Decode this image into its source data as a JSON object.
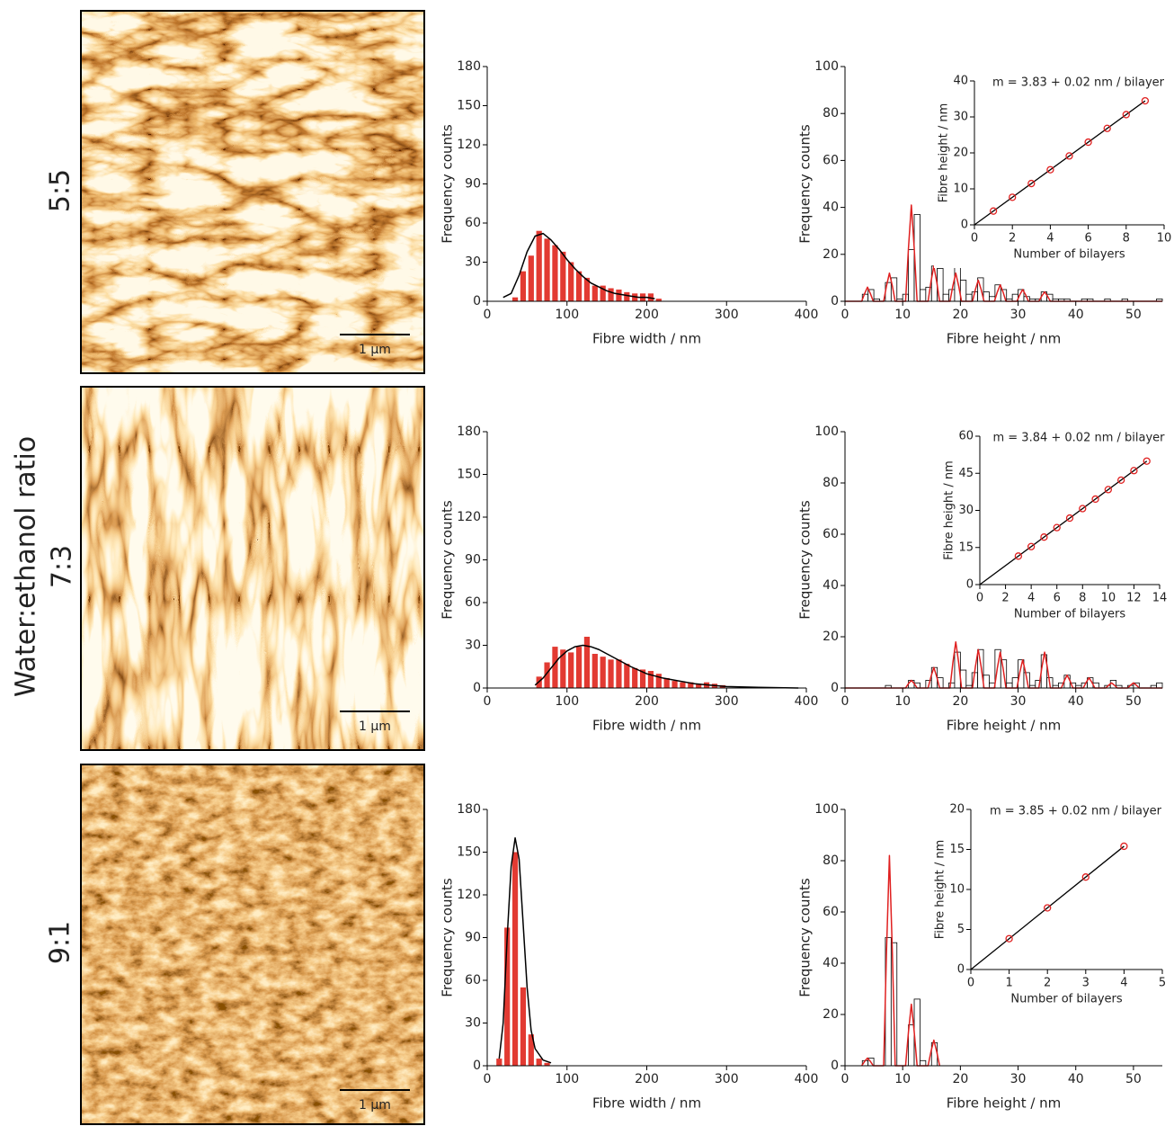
{
  "figure": {
    "ylabel": "Water:ethanol ratio",
    "rows": [
      "5:5",
      "7:3",
      "9:1"
    ],
    "scale_bar": "1 µm"
  },
  "chart_data": [
    {
      "type": "histogram",
      "xlabel": "Fibre width / nm",
      "ylabel": "Frequency counts",
      "color": "#e23a32",
      "bins": [
        30,
        40,
        50,
        60,
        70,
        80,
        90,
        100,
        110,
        120,
        130,
        140,
        150,
        160,
        170,
        180,
        190,
        200,
        210,
        220
      ],
      "values": [
        3,
        23,
        35,
        54,
        48,
        43,
        38,
        30,
        23,
        18,
        12,
        12,
        10,
        9,
        7,
        6,
        6,
        6,
        2
      ],
      "fit": {
        "color": "#000000",
        "x": [
          20,
          30,
          40,
          50,
          60,
          70,
          80,
          90,
          100,
          110,
          120,
          130,
          140,
          150,
          160,
          170,
          180,
          190,
          200,
          210
        ],
        "y": [
          3,
          6,
          20,
          38,
          50,
          52,
          47,
          40,
          32,
          25,
          19,
          14,
          11,
          8,
          6,
          5,
          4,
          3,
          3,
          2
        ]
      },
      "xlim": [
        0,
        400
      ],
      "xticks": [
        0,
        100,
        200,
        300,
        400
      ],
      "ylim": [
        0,
        180
      ],
      "yticks": [
        0,
        30,
        60,
        90,
        120,
        150,
        180
      ]
    },
    {
      "type": "histogram",
      "xlabel": "Fibre height / nm",
      "ylabel": "Frequency counts",
      "color": "#ffffff",
      "edge_color": "#000000",
      "bins": [
        0,
        1,
        2,
        3,
        4,
        5,
        6,
        7,
        8,
        9,
        10,
        11,
        12,
        13,
        14,
        15,
        16,
        17,
        18,
        19,
        20,
        21,
        22,
        23,
        24,
        25,
        26,
        27,
        28,
        29,
        30,
        31,
        32,
        33,
        34,
        35,
        36,
        37,
        38,
        39,
        40,
        41,
        42,
        43,
        44,
        45,
        46,
        47,
        48,
        49,
        50,
        51,
        52,
        53,
        54,
        55
      ],
      "values": [
        0,
        0,
        0,
        3,
        5,
        1,
        0,
        8,
        10,
        1,
        3,
        22,
        37,
        5,
        6,
        15,
        14,
        3,
        5,
        19,
        9,
        3,
        4,
        10,
        4,
        2,
        7,
        5,
        1,
        3,
        5,
        2,
        1,
        1,
        4,
        3,
        1,
        1,
        1,
        0,
        0,
        1,
        1,
        0,
        0,
        1,
        0,
        0,
        1,
        0,
        0,
        0,
        0,
        0,
        1
      ],
      "fit": {
        "color": "#e02020",
        "x": [
          0,
          2.9,
          3.4,
          3.9,
          4.4,
          4.9,
          6.7,
          7.2,
          7.7,
          8.2,
          8.7,
          10.5,
          11,
          11.5,
          12,
          12.5,
          14.4,
          14.9,
          15.4,
          15.9,
          16.4,
          18.2,
          18.7,
          19.2,
          19.7,
          20.2,
          22.1,
          22.6,
          23.1,
          23.6,
          24.1,
          25.9,
          26.4,
          26.9,
          27.4,
          27.9,
          29.8,
          30.3,
          30.8,
          31.3,
          31.8,
          33.6,
          34.1,
          34.6,
          35.1,
          35.6,
          55
        ],
        "y": [
          0,
          0,
          3.3,
          6,
          3.3,
          0,
          0,
          6.6,
          12,
          6.6,
          0,
          0,
          22.6,
          41,
          22.6,
          0,
          0,
          8.3,
          15,
          8.3,
          0,
          0,
          6.6,
          12,
          6.6,
          0,
          0,
          5,
          9,
          5,
          0,
          0,
          3.9,
          7,
          3.9,
          0,
          0,
          2.8,
          5,
          2.8,
          0,
          0,
          2.2,
          4,
          2.2,
          0,
          0
        ]
      },
      "xlim": [
        0,
        55
      ],
      "xticks": [
        0,
        10,
        20,
        30,
        40,
        50
      ],
      "ylim": [
        0,
        100
      ],
      "yticks": [
        0,
        20,
        40,
        60,
        80,
        100
      ]
    },
    {
      "type": "scatter",
      "xlabel": "Number of bilayers",
      "ylabel": "Fibre height / nm",
      "annotation": "m = 3.83 + 0.02 nm / bilayer",
      "color": "#e02020",
      "x": [
        1,
        2,
        3,
        4,
        5,
        6,
        7,
        8,
        9
      ],
      "y": [
        3.83,
        7.66,
        11.49,
        15.32,
        19.15,
        22.98,
        26.81,
        30.64,
        34.47
      ],
      "fit": {
        "color": "#000000",
        "x": [
          0,
          9
        ],
        "y": [
          0,
          34.47
        ]
      },
      "xlim": [
        0,
        10
      ],
      "xticks": [
        0,
        2,
        4,
        6,
        8,
        10
      ],
      "ylim": [
        0,
        40
      ],
      "yticks": [
        0,
        10,
        20,
        30,
        40
      ]
    },
    {
      "type": "histogram",
      "xlabel": "Fibre width / nm",
      "ylabel": "Frequency counts",
      "color": "#e23a32",
      "bins": [
        60,
        70,
        80,
        90,
        100,
        110,
        120,
        130,
        140,
        150,
        160,
        170,
        180,
        190,
        200,
        210,
        220,
        230,
        240,
        250,
        260,
        270,
        280,
        290,
        300
      ],
      "values": [
        8,
        18,
        29,
        27,
        25,
        29,
        36,
        24,
        22,
        20,
        20,
        17,
        14,
        13,
        12,
        10,
        7,
        5,
        4,
        4,
        3,
        4,
        3,
        2
      ],
      "fit": {
        "color": "#000000",
        "x": [
          60,
          70,
          80,
          90,
          100,
          110,
          120,
          130,
          140,
          150,
          160,
          170,
          180,
          200,
          220,
          240,
          260,
          280,
          300,
          340,
          390
        ],
        "y": [
          2,
          7,
          14,
          21,
          26,
          29,
          30,
          29,
          27,
          24,
          21,
          18,
          15,
          10,
          7,
          5,
          3,
          2,
          1,
          0.5,
          0
        ]
      },
      "xlim": [
        0,
        400
      ],
      "xticks": [
        0,
        100,
        200,
        300,
        400
      ],
      "ylim": [
        0,
        180
      ],
      "yticks": [
        0,
        30,
        60,
        90,
        120,
        150,
        180
      ]
    },
    {
      "type": "histogram",
      "xlabel": "Fibre height / nm",
      "ylabel": "Frequency counts",
      "color": "#ffffff",
      "edge_color": "#000000",
      "bins": [
        0,
        1,
        2,
        3,
        4,
        5,
        6,
        7,
        8,
        9,
        10,
        11,
        12,
        13,
        14,
        15,
        16,
        17,
        18,
        19,
        20,
        21,
        22,
        23,
        24,
        25,
        26,
        27,
        28,
        29,
        30,
        31,
        32,
        33,
        34,
        35,
        36,
        37,
        38,
        39,
        40,
        41,
        42,
        43,
        44,
        45,
        46,
        47,
        48,
        49,
        50,
        51,
        52,
        53,
        54,
        55
      ],
      "values": [
        0,
        0,
        0,
        0,
        0,
        0,
        0,
        1,
        0,
        0,
        0,
        3,
        2,
        0,
        3,
        8,
        4,
        0,
        2,
        14,
        7,
        1,
        6,
        15,
        5,
        2,
        15,
        11,
        2,
        4,
        11,
        6,
        1,
        3,
        13,
        4,
        1,
        2,
        5,
        2,
        1,
        2,
        4,
        2,
        0,
        1,
        3,
        1,
        0,
        1,
        2,
        0,
        0,
        1,
        2
      ],
      "fit": {
        "color": "#e02020",
        "x": [
          0,
          10.5,
          11,
          11.5,
          12,
          12.5,
          14.4,
          14.9,
          15.4,
          15.9,
          16.4,
          18.2,
          18.7,
          19.2,
          19.7,
          20.2,
          22.1,
          22.6,
          23.1,
          23.6,
          24.1,
          25.9,
          26.4,
          26.9,
          27.4,
          27.9,
          29.8,
          30.3,
          30.8,
          31.3,
          31.8,
          33.6,
          34.1,
          34.6,
          35.1,
          35.6,
          37.5,
          38,
          38.5,
          39,
          39.5,
          41.3,
          41.8,
          42.3,
          42.8,
          43.3,
          45.2,
          45.7,
          46.2,
          46.7,
          47.2,
          49,
          49.5,
          50,
          50.5,
          51,
          55
        ],
        "y": [
          0,
          0,
          1.7,
          3,
          1.7,
          0,
          0,
          4.4,
          8,
          4.4,
          0,
          0,
          9.9,
          18,
          9.9,
          0,
          0,
          8.3,
          15,
          8.3,
          0,
          0,
          7.7,
          14,
          7.7,
          0,
          0,
          6.1,
          11,
          6.1,
          0,
          0,
          7.7,
          14,
          7.7,
          0,
          0,
          2.8,
          5,
          2.8,
          0,
          0,
          2.2,
          4,
          2.2,
          0,
          0,
          1.1,
          2,
          1.1,
          0,
          0,
          1.1,
          2,
          1.1,
          0,
          0
        ]
      },
      "xlim": [
        0,
        55
      ],
      "xticks": [
        0,
        10,
        20,
        30,
        40,
        50
      ],
      "ylim": [
        0,
        100
      ],
      "yticks": [
        0,
        20,
        40,
        60,
        80,
        100
      ]
    },
    {
      "type": "scatter",
      "xlabel": "Number of bilayers",
      "ylabel": "Fibre height / nm",
      "annotation": "m = 3.84 + 0.02 nm / bilayer",
      "color": "#e02020",
      "x": [
        3,
        4,
        5,
        6,
        7,
        8,
        9,
        10,
        11,
        12,
        13
      ],
      "y": [
        11.52,
        15.36,
        19.2,
        23.04,
        26.88,
        30.72,
        34.56,
        38.4,
        42.24,
        46.08,
        49.92
      ],
      "fit": {
        "color": "#000000",
        "x": [
          0,
          13
        ],
        "y": [
          0,
          49.92
        ]
      },
      "xlim": [
        0,
        14
      ],
      "xticks": [
        0,
        2,
        4,
        6,
        8,
        10,
        12,
        14
      ],
      "ylim": [
        0,
        60
      ],
      "yticks": [
        0,
        15,
        30,
        45,
        60
      ]
    },
    {
      "type": "histogram",
      "xlabel": "Fibre width / nm",
      "ylabel": "Frequency counts",
      "color": "#e23a32",
      "bins": [
        10,
        20,
        30,
        40,
        50,
        60,
        70,
        80
      ],
      "values": [
        5,
        97,
        150,
        55,
        22,
        5,
        2
      ],
      "fit": {
        "color": "#000000",
        "x": [
          15,
          20,
          25,
          30,
          35,
          40,
          45,
          50,
          55,
          60,
          70,
          80
        ],
        "y": [
          5,
          30,
          90,
          140,
          160,
          145,
          100,
          55,
          25,
          12,
          4,
          2
        ]
      },
      "xlim": [
        0,
        400
      ],
      "xticks": [
        0,
        100,
        200,
        300,
        400
      ],
      "ylim": [
        0,
        180
      ],
      "yticks": [
        0,
        30,
        60,
        90,
        120,
        150,
        180
      ]
    },
    {
      "type": "histogram",
      "xlabel": "Fibre height / nm",
      "ylabel": "Frequency counts",
      "color": "#ffffff",
      "edge_color": "#000000",
      "bins": [
        0,
        1,
        2,
        3,
        4,
        5,
        6,
        7,
        8,
        9,
        10,
        11,
        12,
        13,
        14,
        15,
        16,
        17,
        18,
        19,
        20,
        21,
        22,
        23,
        24,
        25,
        26,
        27,
        28,
        29,
        30,
        31,
        32,
        33,
        34,
        35,
        36,
        37,
        38,
        39,
        40,
        41,
        42,
        43,
        44,
        45,
        46,
        47,
        48,
        49,
        50,
        51,
        52,
        53,
        54,
        55
      ],
      "values": [
        0,
        0,
        0,
        2,
        3,
        0,
        0,
        50,
        48,
        0,
        0,
        16,
        26,
        2,
        0,
        9,
        0,
        0,
        0,
        0,
        0,
        0,
        0,
        0,
        0,
        0,
        0,
        0,
        0,
        0,
        0,
        0,
        0,
        0,
        0,
        0,
        0,
        0,
        0,
        0,
        0,
        0,
        0,
        0,
        0,
        0,
        0,
        0,
        0,
        0,
        0,
        0,
        0,
        0,
        0
      ],
      "fit": {
        "color": "#e02020",
        "x": [
          2.9,
          3.4,
          3.9,
          4.4,
          4.9,
          6.7,
          7.2,
          7.7,
          8.2,
          8.7,
          10.5,
          11,
          11.5,
          12,
          12.5,
          14.4,
          14.9,
          15.4,
          15.9,
          16.4
        ],
        "y": [
          0,
          1.7,
          3,
          1.7,
          0,
          0,
          45,
          82,
          45,
          0,
          0,
          13.2,
          24,
          13.2,
          0,
          0,
          5.5,
          10,
          5.5,
          0
        ]
      },
      "xlim": [
        0,
        55
      ],
      "xticks": [
        0,
        10,
        20,
        30,
        40,
        50
      ],
      "ylim": [
        0,
        100
      ],
      "yticks": [
        0,
        20,
        40,
        60,
        80,
        100
      ]
    },
    {
      "type": "scatter",
      "xlabel": "Number of bilayers",
      "ylabel": "Fibre height / nm",
      "annotation": "m = 3.85 + 0.02 nm / bilayer",
      "color": "#e02020",
      "x": [
        1,
        2,
        3,
        4
      ],
      "y": [
        3.85,
        7.7,
        11.55,
        15.4
      ],
      "fit": {
        "color": "#000000",
        "x": [
          0,
          4
        ],
        "y": [
          0,
          15.4
        ]
      },
      "xlim": [
        0,
        5
      ],
      "xticks": [
        0,
        1,
        2,
        3,
        4,
        5
      ],
      "ylim": [
        0,
        20
      ],
      "yticks": [
        0,
        5,
        10,
        15,
        20
      ]
    }
  ]
}
